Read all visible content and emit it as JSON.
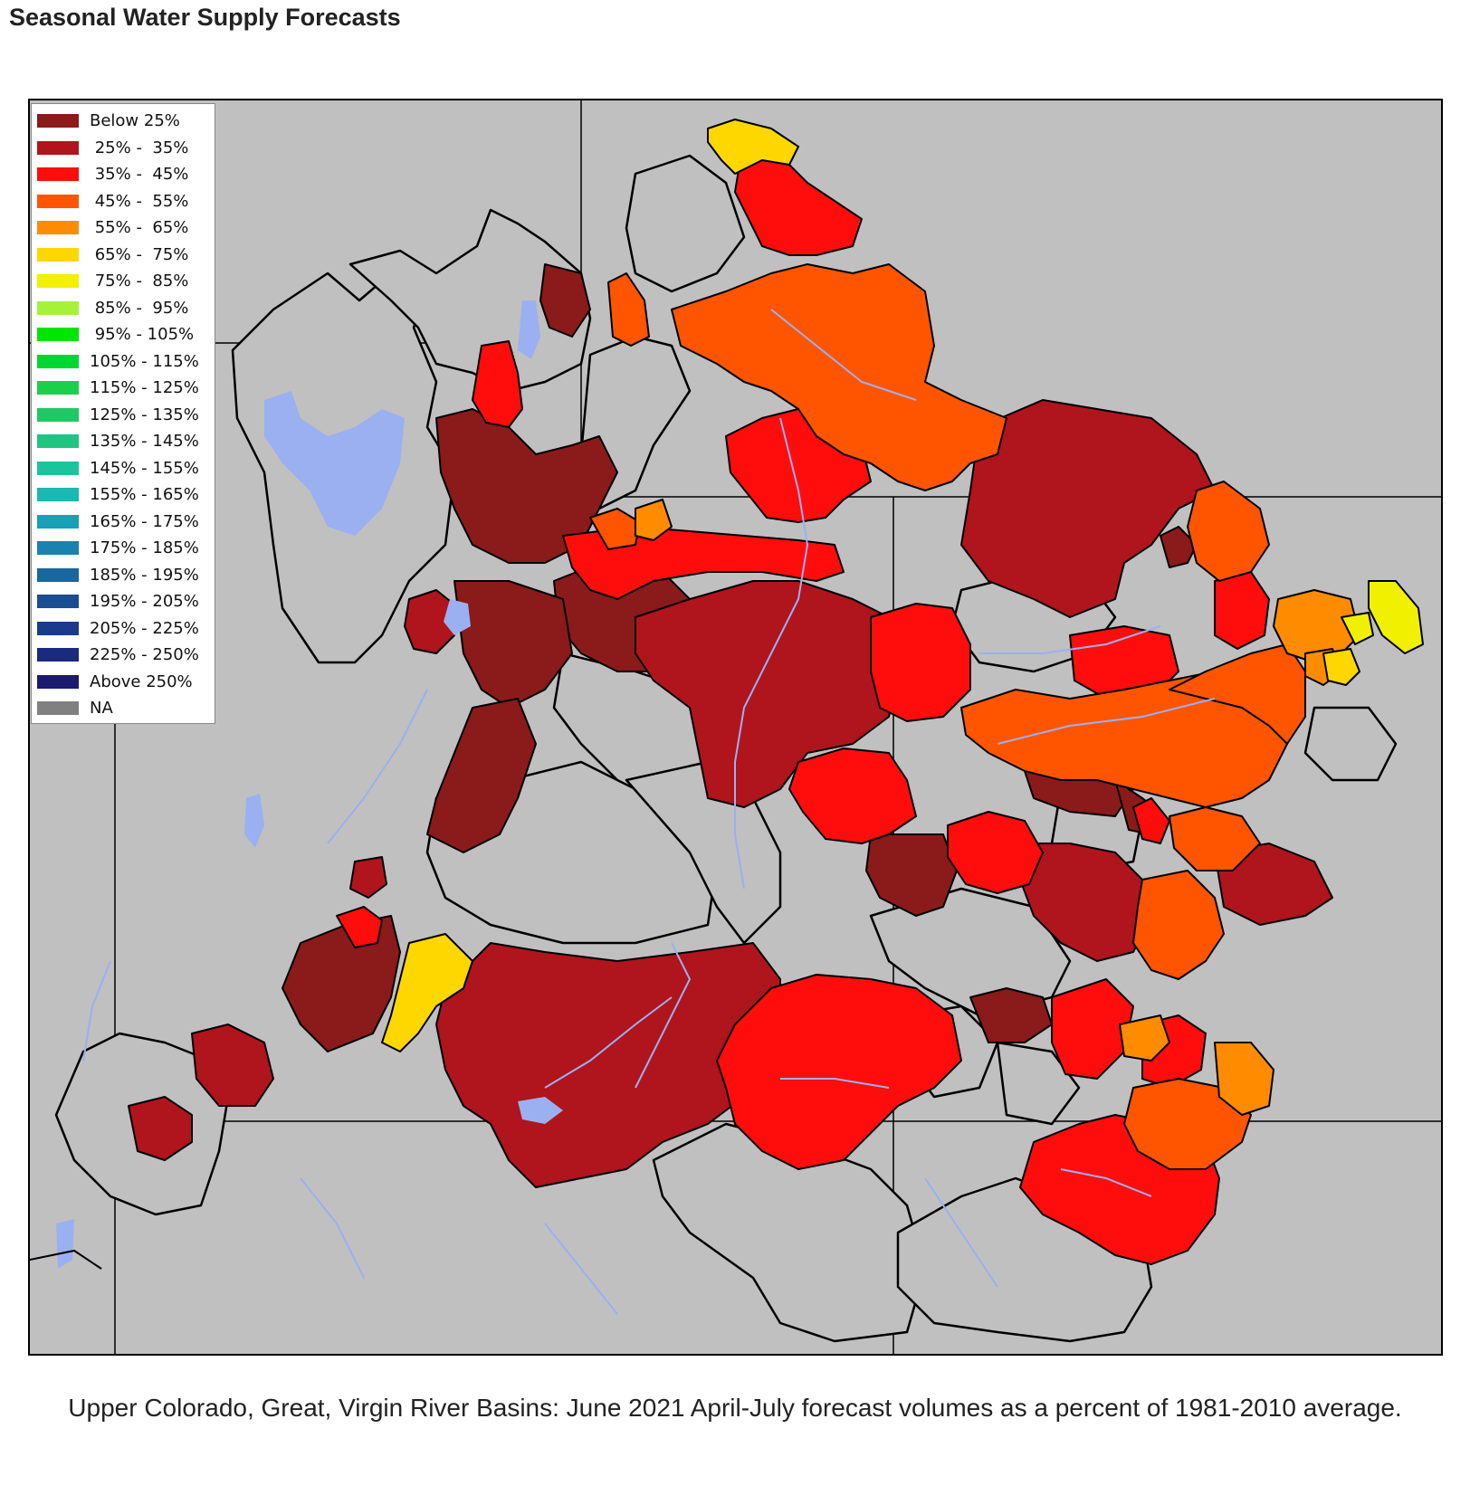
{
  "title": "Seasonal Water Supply Forecasts",
  "caption": "Upper Colorado, Great, Virgin River Basins: June 2021 April-July forecast volumes as a percent of 1981-2010 average.",
  "legend": [
    {
      "label": "Below 25%",
      "color": "#8b1a1a"
    },
    {
      "label": " 25% -  35%",
      "color": "#b0141c"
    },
    {
      "label": " 35% -  45%",
      "color": "#ff0d0d"
    },
    {
      "label": " 45% -  55%",
      "color": "#ff5500"
    },
    {
      "label": " 55% -  65%",
      "color": "#ff8c00"
    },
    {
      "label": " 65% -  75%",
      "color": "#ffd700"
    },
    {
      "label": " 75% -  85%",
      "color": "#f0f000"
    },
    {
      "label": " 85% -  95%",
      "color": "#a6f23a"
    },
    {
      "label": " 95% - 105%",
      "color": "#00e600"
    },
    {
      "label": "105% - 115%",
      "color": "#00d830"
    },
    {
      "label": "115% - 125%",
      "color": "#1ad04a"
    },
    {
      "label": "125% - 135%",
      "color": "#20c864"
    },
    {
      "label": "135% - 145%",
      "color": "#1ec682"
    },
    {
      "label": "145% - 155%",
      "color": "#1cc49c"
    },
    {
      "label": "155% - 165%",
      "color": "#19b8b0"
    },
    {
      "label": "165% - 175%",
      "color": "#199fb8"
    },
    {
      "label": "175% - 185%",
      "color": "#1a82ae"
    },
    {
      "label": "185% - 195%",
      "color": "#1a669e"
    },
    {
      "label": "195% - 205%",
      "color": "#1a4e94"
    },
    {
      "label": "205% - 225%",
      "color": "#1a3a8a"
    },
    {
      "label": "225% - 250%",
      "color": "#1a2a7e"
    },
    {
      "label": "Above 250%",
      "color": "#1a1a6e"
    },
    {
      "label": "NA",
      "color": "#808080"
    }
  ],
  "colors": {
    "background": "#c0c0c0",
    "water": "#9bb0f0",
    "boundary": "#000000"
  }
}
